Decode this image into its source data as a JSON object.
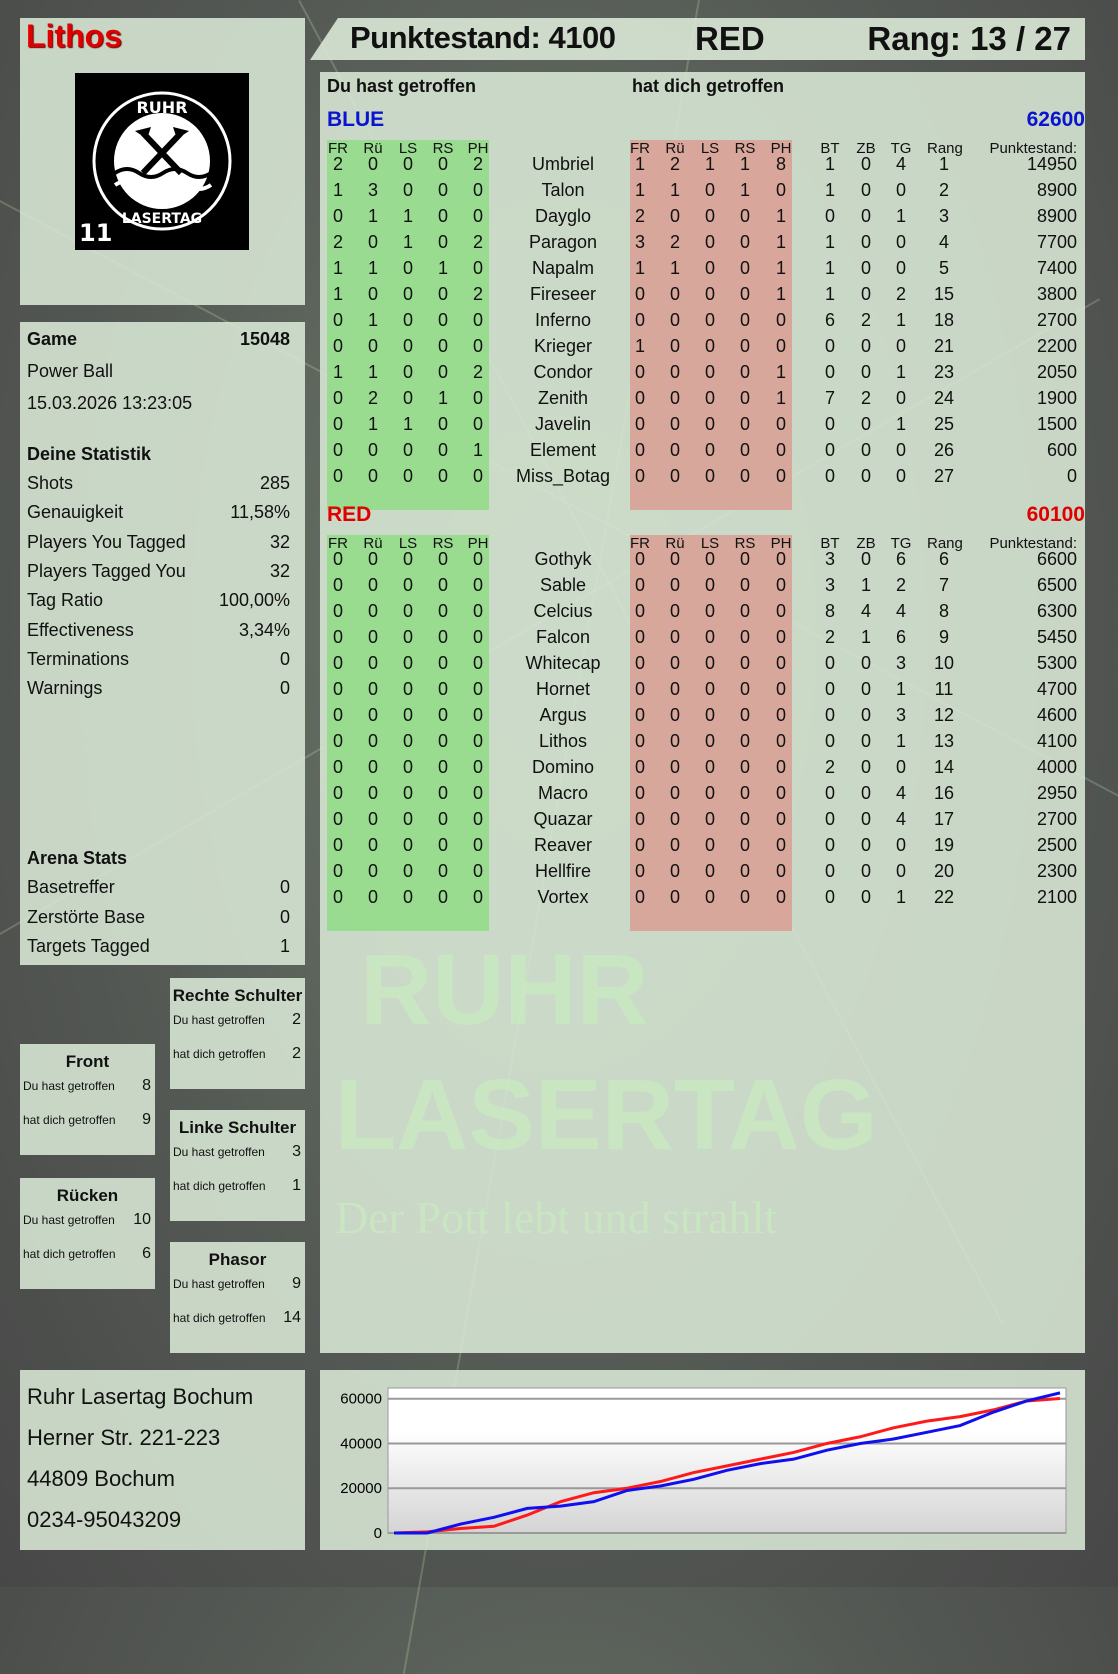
{
  "player": {
    "name": "Lithos",
    "name_color": "#e10000",
    "logo_text": [
      "RUHR",
      "LASERTAG",
      "11"
    ]
  },
  "header": {
    "score": "Punktestand: 4100",
    "team": "RED",
    "rank": "Rang: 13 / 27"
  },
  "game": {
    "label": "Game",
    "id": "15048",
    "mode": "Power Ball",
    "datetime": "15.03.2026 13:23:05"
  },
  "stats": {
    "title": "Deine Statistik",
    "items": [
      {
        "label": "Shots",
        "value": "285"
      },
      {
        "label": "Genauigkeit",
        "value": "11,58%"
      },
      {
        "label": "Players You Tagged",
        "value": "32"
      },
      {
        "label": "Players Tagged You",
        "value": "32"
      },
      {
        "label": "Tag Ratio",
        "value": "100,00%"
      },
      {
        "label": "Effectiveness",
        "value": "3,34%"
      },
      {
        "label": "Terminations",
        "value": "0"
      },
      {
        "label": "Warnings",
        "value": "0"
      }
    ]
  },
  "arena": {
    "title": "Arena Stats",
    "items": [
      {
        "label": "Basetreffer",
        "value": "0"
      },
      {
        "label": "Zerstörte Base",
        "value": "0"
      },
      {
        "label": "Targets Tagged",
        "value": "1"
      }
    ]
  },
  "zones": [
    {
      "title": "Rechte Schulter",
      "you_hit_label": "Du hast getroffen",
      "you_hit": "2",
      "hit_you_label": "hat dich getroffen",
      "hit_you": "2"
    },
    {
      "title": "Front",
      "you_hit_label": "Du hast getroffen",
      "you_hit": "8",
      "hit_you_label": "hat dich getroffen",
      "hit_you": "9"
    },
    {
      "title": "Linke Schulter",
      "you_hit_label": "Du hast getroffen",
      "you_hit": "3",
      "hit_you_label": "hat dich getroffen",
      "hit_you": "1"
    },
    {
      "title": "Rücken",
      "you_hit_label": "Du hast getroffen",
      "you_hit": "10",
      "hit_you_label": "hat dich getroffen",
      "hit_you": "6"
    },
    {
      "title": "Phasor",
      "you_hit_label": "Du hast getroffen",
      "you_hit": "9",
      "hit_you_label": "hat dich getroffen",
      "hit_you": "14"
    }
  ],
  "table": {
    "you_hit_label": "Du hast getroffen",
    "hit_you_label": "hat dich getroffen",
    "columns": [
      "FR",
      "Rü",
      "LS",
      "RS",
      "PH",
      "FR",
      "Rü",
      "LS",
      "RS",
      "PH",
      "BT",
      "ZB",
      "TG",
      "Rang",
      "Punktestand:"
    ]
  },
  "teams": [
    {
      "name": "BLUE",
      "score": "62600",
      "color": "#0a14d0",
      "players": [
        [
          "2",
          "0",
          "0",
          "0",
          "2",
          "Umbriel",
          "1",
          "2",
          "1",
          "1",
          "8",
          "1",
          "0",
          "4",
          "1",
          "14950"
        ],
        [
          "1",
          "3",
          "0",
          "0",
          "0",
          "Talon",
          "1",
          "1",
          "0",
          "1",
          "0",
          "1",
          "0",
          "0",
          "2",
          "8900"
        ],
        [
          "0",
          "1",
          "1",
          "0",
          "0",
          "Dayglo",
          "2",
          "0",
          "0",
          "0",
          "1",
          "0",
          "0",
          "1",
          "3",
          "8900"
        ],
        [
          "2",
          "0",
          "1",
          "0",
          "2",
          "Paragon",
          "3",
          "2",
          "0",
          "0",
          "1",
          "1",
          "0",
          "0",
          "4",
          "7700"
        ],
        [
          "1",
          "1",
          "0",
          "1",
          "0",
          "Napalm",
          "1",
          "1",
          "0",
          "0",
          "1",
          "1",
          "0",
          "0",
          "5",
          "7400"
        ],
        [
          "1",
          "0",
          "0",
          "0",
          "2",
          "Fireseer",
          "0",
          "0",
          "0",
          "0",
          "1",
          "1",
          "0",
          "2",
          "15",
          "3800"
        ],
        [
          "0",
          "1",
          "0",
          "0",
          "0",
          "Inferno",
          "0",
          "0",
          "0",
          "0",
          "0",
          "6",
          "2",
          "1",
          "18",
          "2700"
        ],
        [
          "0",
          "0",
          "0",
          "0",
          "0",
          "Krieger",
          "1",
          "0",
          "0",
          "0",
          "0",
          "0",
          "0",
          "0",
          "21",
          "2200"
        ],
        [
          "1",
          "1",
          "0",
          "0",
          "2",
          "Condor",
          "0",
          "0",
          "0",
          "0",
          "1",
          "0",
          "0",
          "1",
          "23",
          "2050"
        ],
        [
          "0",
          "2",
          "0",
          "1",
          "0",
          "Zenith",
          "0",
          "0",
          "0",
          "0",
          "1",
          "7",
          "2",
          "0",
          "24",
          "1900"
        ],
        [
          "0",
          "1",
          "1",
          "0",
          "0",
          "Javelin",
          "0",
          "0",
          "0",
          "0",
          "0",
          "0",
          "0",
          "1",
          "25",
          "1500"
        ],
        [
          "0",
          "0",
          "0",
          "0",
          "1",
          "Element",
          "0",
          "0",
          "0",
          "0",
          "0",
          "0",
          "0",
          "0",
          "26",
          "600"
        ],
        [
          "0",
          "0",
          "0",
          "0",
          "0",
          "Miss_Botag",
          "0",
          "0",
          "0",
          "0",
          "0",
          "0",
          "0",
          "0",
          "27",
          "0"
        ]
      ]
    },
    {
      "name": "RED",
      "score": "60100",
      "color": "#e00000",
      "players": [
        [
          "0",
          "0",
          "0",
          "0",
          "0",
          "Gothyk",
          "0",
          "0",
          "0",
          "0",
          "0",
          "3",
          "0",
          "6",
          "6",
          "6600"
        ],
        [
          "0",
          "0",
          "0",
          "0",
          "0",
          "Sable",
          "0",
          "0",
          "0",
          "0",
          "0",
          "3",
          "1",
          "2",
          "7",
          "6500"
        ],
        [
          "0",
          "0",
          "0",
          "0",
          "0",
          "Celcius",
          "0",
          "0",
          "0",
          "0",
          "0",
          "8",
          "4",
          "4",
          "8",
          "6300"
        ],
        [
          "0",
          "0",
          "0",
          "0",
          "0",
          "Falcon",
          "0",
          "0",
          "0",
          "0",
          "0",
          "2",
          "1",
          "6",
          "9",
          "5450"
        ],
        [
          "0",
          "0",
          "0",
          "0",
          "0",
          "Whitecap",
          "0",
          "0",
          "0",
          "0",
          "0",
          "0",
          "0",
          "3",
          "10",
          "5300"
        ],
        [
          "0",
          "0",
          "0",
          "0",
          "0",
          "Hornet",
          "0",
          "0",
          "0",
          "0",
          "0",
          "0",
          "0",
          "1",
          "11",
          "4700"
        ],
        [
          "0",
          "0",
          "0",
          "0",
          "0",
          "Argus",
          "0",
          "0",
          "0",
          "0",
          "0",
          "0",
          "0",
          "3",
          "12",
          "4600"
        ],
        [
          "0",
          "0",
          "0",
          "0",
          "0",
          "Lithos",
          "0",
          "0",
          "0",
          "0",
          "0",
          "0",
          "0",
          "1",
          "13",
          "4100"
        ],
        [
          "0",
          "0",
          "0",
          "0",
          "0",
          "Domino",
          "0",
          "0",
          "0",
          "0",
          "0",
          "2",
          "0",
          "0",
          "14",
          "4000"
        ],
        [
          "0",
          "0",
          "0",
          "0",
          "0",
          "Macro",
          "0",
          "0",
          "0",
          "0",
          "0",
          "0",
          "0",
          "4",
          "16",
          "2950"
        ],
        [
          "0",
          "0",
          "0",
          "0",
          "0",
          "Quazar",
          "0",
          "0",
          "0",
          "0",
          "0",
          "0",
          "0",
          "4",
          "17",
          "2700"
        ],
        [
          "0",
          "0",
          "0",
          "0",
          "0",
          "Reaver",
          "0",
          "0",
          "0",
          "0",
          "0",
          "0",
          "0",
          "0",
          "19",
          "2500"
        ],
        [
          "0",
          "0",
          "0",
          "0",
          "0",
          "Hellfire",
          "0",
          "0",
          "0",
          "0",
          "0",
          "0",
          "0",
          "0",
          "20",
          "2300"
        ],
        [
          "0",
          "0",
          "0",
          "0",
          "0",
          "Vortex",
          "0",
          "0",
          "0",
          "0",
          "0",
          "0",
          "0",
          "1",
          "22",
          "2100"
        ]
      ]
    }
  ],
  "address": [
    "Ruhr Lasertag Bochum",
    "Herner Str. 221-223",
    "44809 Bochum",
    "0234-95043209"
  ],
  "watermark": {
    "line1": "RUHR",
    "line2": "LASERTAG",
    "line3": "Der Pott lebt und strahlt"
  },
  "chart_data": {
    "type": "line",
    "ylim": [
      0,
      63000
    ],
    "yticks": [
      0,
      20000,
      40000,
      60000
    ],
    "grid": true,
    "x": [
      0,
      1,
      2,
      3,
      4,
      5,
      6,
      7,
      8,
      9,
      10,
      11,
      12,
      13,
      14,
      15,
      16,
      17,
      18,
      19,
      20
    ],
    "series": [
      {
        "color": "#ff1a1a",
        "values": [
          0,
          500,
          2000,
          3000,
          8000,
          14000,
          18000,
          20000,
          23000,
          27000,
          30000,
          33000,
          36000,
          40000,
          43000,
          47000,
          50000,
          52000,
          55000,
          59000,
          60100
        ]
      },
      {
        "color": "#1010ee",
        "values": [
          0,
          0,
          4000,
          7000,
          11000,
          12000,
          14000,
          19000,
          21000,
          24000,
          28000,
          31000,
          33000,
          37000,
          40000,
          42000,
          45000,
          48000,
          54000,
          59000,
          62600
        ]
      }
    ]
  }
}
